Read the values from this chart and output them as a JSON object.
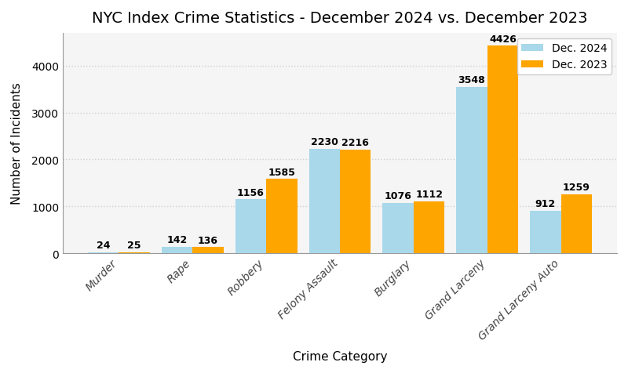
{
  "title": "NYC Index Crime Statistics - December 2024 vs. December 2023",
  "xlabel": "Crime Category",
  "ylabel": "Number of Incidents",
  "categories": [
    "Murder",
    "Rape",
    "Robbery",
    "Felony Assault",
    "Burglary",
    "Grand Larceny",
    "Grand Larceny Auto"
  ],
  "dec2024": [
    24,
    142,
    1156,
    2230,
    1076,
    3548,
    912
  ],
  "dec2023": [
    25,
    136,
    1585,
    2216,
    1112,
    4426,
    1259
  ],
  "color_2024": "#A8D8EA",
  "color_2023": "#FFA500",
  "legend_2024": "Dec. 2024",
  "legend_2023": "Dec. 2023",
  "ylim": [
    0,
    4700
  ],
  "bar_width": 0.42,
  "title_fontsize": 14,
  "label_fontsize": 11,
  "tick_fontsize": 10,
  "value_fontsize": 9,
  "background_color": "#ffffff",
  "plot_bg_color": "#f5f5f5",
  "grid_color": "#d0d0d0",
  "yticks": [
    0,
    1000,
    2000,
    3000,
    4000
  ]
}
